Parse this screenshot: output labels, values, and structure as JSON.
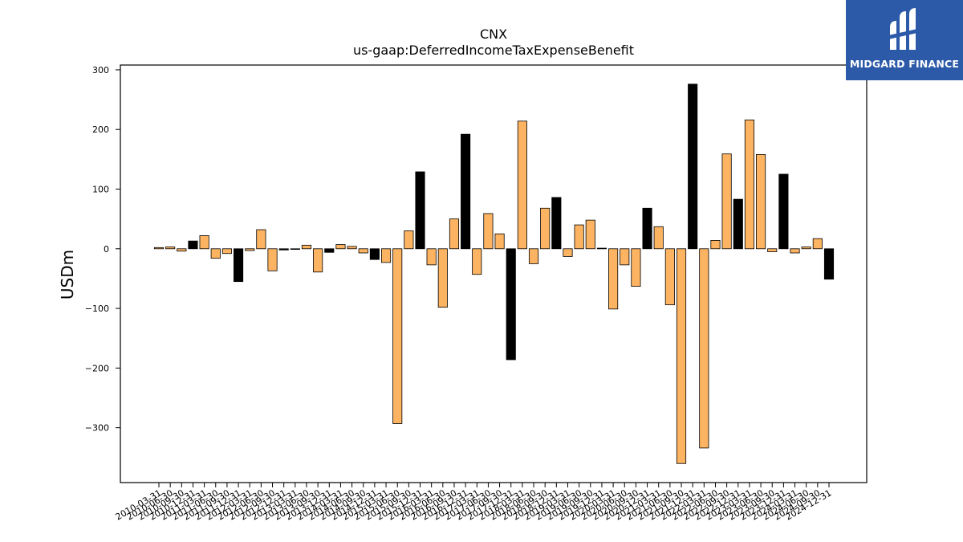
{
  "brand": {
    "name": "MIDGARD FINANCE"
  },
  "colors": {
    "positive": "#fdb462",
    "highlight": "#000000",
    "edge": "#000000",
    "logo_bg": "#2c5aa8"
  },
  "chart_data": {
    "type": "bar",
    "title": "CNX",
    "subtitle": "us-gaap:DeferredIncomeTaxExpenseBenefit",
    "xlabel": "",
    "ylabel": "USDm",
    "ylim": [
      -392,
      308
    ],
    "yticks": [
      -300,
      -200,
      -100,
      0,
      100,
      200,
      300
    ],
    "grid": false,
    "legend": "none",
    "categories": [
      "2010-03-31",
      "2010-06-30",
      "2010-09-30",
      "2010-12-31",
      "2011-03-31",
      "2011-06-30",
      "2011-09-30",
      "2011-12-31",
      "2012-03-31",
      "2012-06-30",
      "2012-09-30",
      "2012-12-31",
      "2013-03-31",
      "2013-06-30",
      "2013-09-30",
      "2013-12-31",
      "2014-03-31",
      "2014-06-30",
      "2014-09-30",
      "2014-12-31",
      "2015-03-31",
      "2015-06-30",
      "2015-09-30",
      "2015-12-31",
      "2016-03-31",
      "2016-06-30",
      "2016-09-30",
      "2016-12-31",
      "2017-03-31",
      "2017-06-30",
      "2017-09-30",
      "2017-12-31",
      "2018-03-31",
      "2018-06-30",
      "2018-09-30",
      "2018-12-31",
      "2019-03-31",
      "2019-06-30",
      "2019-09-30",
      "2019-12-31",
      "2020-03-31",
      "2020-06-30",
      "2020-09-30",
      "2020-12-31",
      "2021-03-31",
      "2021-06-30",
      "2021-09-30",
      "2021-12-31",
      "2022-03-31",
      "2022-06-30",
      "2022-09-30",
      "2022-12-31",
      "2023-03-31",
      "2023-06-30",
      "2023-09-30",
      "2023-12-31",
      "2024-03-31",
      "2024-06-30",
      "2024-09-30",
      "2024-12-31"
    ],
    "values": [
      2,
      3,
      -4,
      13,
      22,
      -16,
      -8,
      -55,
      -3,
      32,
      -37,
      -2,
      -1,
      6,
      -39,
      -6,
      7,
      4,
      -7,
      -18,
      -23,
      -293,
      30,
      129,
      -27,
      -98,
      50,
      192,
      -43,
      59,
      25,
      -186,
      214,
      -25,
      68,
      86,
      -13,
      40,
      48,
      1,
      -101,
      -27,
      -63,
      68,
      37,
      -94,
      -360,
      276,
      -334,
      14,
      159,
      83,
      216,
      158,
      -5,
      125,
      -7,
      3,
      17,
      -51
    ],
    "highlight": [
      false,
      false,
      false,
      true,
      false,
      false,
      false,
      true,
      false,
      false,
      false,
      true,
      false,
      false,
      false,
      true,
      false,
      false,
      false,
      true,
      false,
      false,
      false,
      true,
      false,
      false,
      false,
      true,
      false,
      false,
      false,
      true,
      false,
      false,
      false,
      true,
      false,
      false,
      false,
      true,
      false,
      false,
      false,
      true,
      false,
      false,
      false,
      true,
      false,
      false,
      false,
      true,
      false,
      false,
      false,
      true,
      false,
      false,
      false,
      true
    ]
  }
}
